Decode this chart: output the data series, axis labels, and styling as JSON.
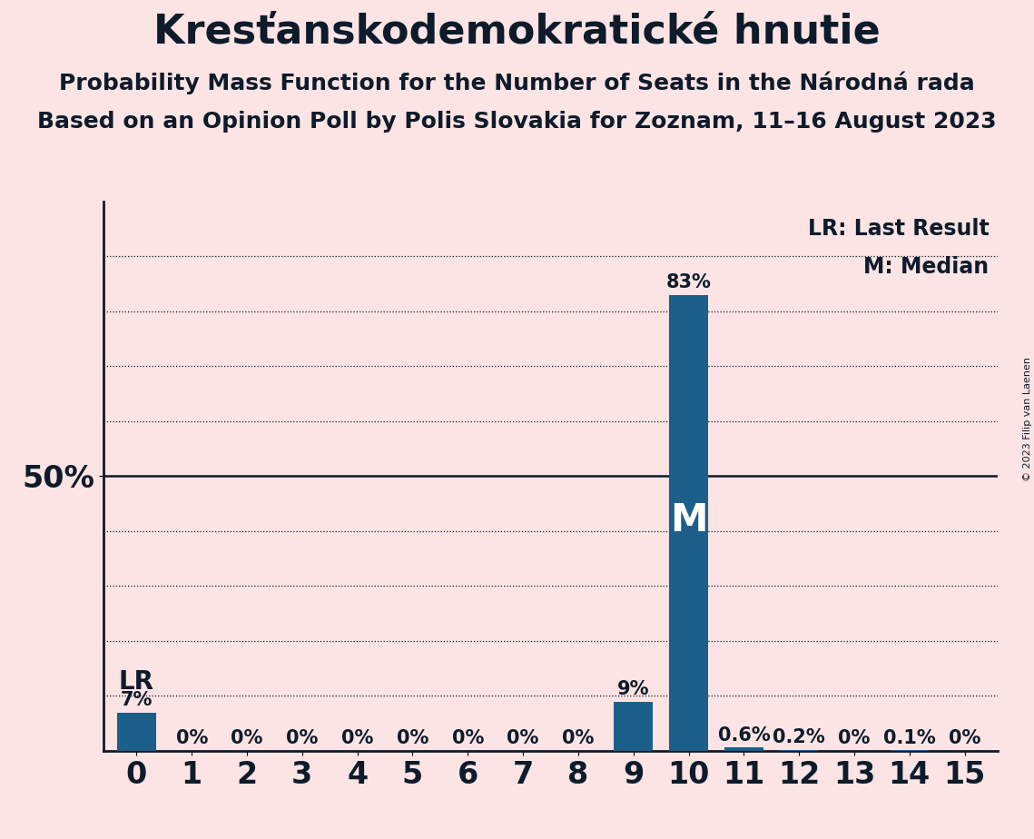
{
  "title": "Kresťanskodemokratické hnutie",
  "subtitle1": "Probability Mass Function for the Number of Seats in the Národná rada",
  "subtitle2": "Based on an Opinion Poll by Polis Slovakia for Zoznam, 11–16 August 2023",
  "copyright": "© 2023 Filip van Laenen",
  "categories": [
    0,
    1,
    2,
    3,
    4,
    5,
    6,
    7,
    8,
    9,
    10,
    11,
    12,
    13,
    14,
    15
  ],
  "values": [
    0.07,
    0.0,
    0.0,
    0.0,
    0.0,
    0.0,
    0.0,
    0.0,
    0.0,
    0.09,
    0.83,
    0.006,
    0.002,
    0.0,
    0.001,
    0.0
  ],
  "bar_color": "#1c5f8a",
  "background_color": "#fce4e4",
  "text_color": "#0d1b2a",
  "ylim": [
    0,
    1.0
  ],
  "label_lr": "LR",
  "label_m": "M",
  "label_lr_legend": "LR: Last Result",
  "label_m_legend": "M: Median",
  "bar_labels": [
    "7%",
    "0%",
    "0%",
    "0%",
    "0%",
    "0%",
    "0%",
    "0%",
    "0%",
    "9%",
    "83%",
    "0.6%",
    "0.2%",
    "0%",
    "0.1%",
    "0%"
  ],
  "title_fontsize": 32,
  "subtitle1_fontsize": 18,
  "subtitle2_fontsize": 18,
  "axis_label_fontsize": 24,
  "bar_label_fontsize": 15,
  "tick_fontsize": 24,
  "legend_fontsize": 17,
  "lr_label_fontsize": 20,
  "m_label_fontsize": 30,
  "copyright_fontsize": 8,
  "grid_positions": [
    0.1,
    0.2,
    0.3,
    0.4,
    0.5,
    0.6,
    0.7,
    0.8,
    0.9
  ]
}
